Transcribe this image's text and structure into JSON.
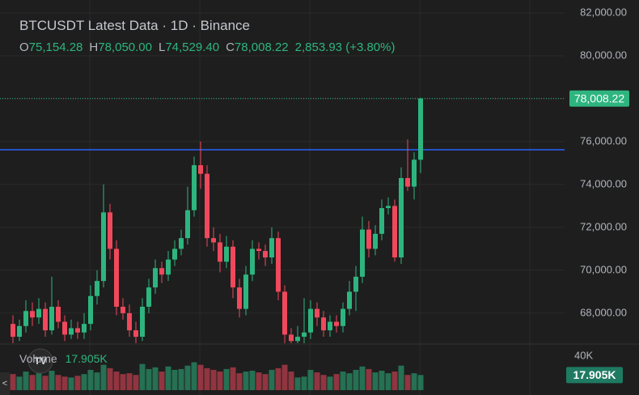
{
  "chart_data": {
    "type": "candlestick",
    "title": "BTCUSDT Latest Data · 1D · Binance",
    "legend": [
      {
        "label": "O",
        "value": "75,154.28"
      },
      {
        "label": "H",
        "value": "78,050.00"
      },
      {
        "label": "L",
        "value": "74,529.40"
      },
      {
        "label": "C",
        "value": "78,008.22"
      }
    ],
    "change": "2,853.93 (+3.80%)",
    "up_color": "#2eb57f",
    "down_color": "#f0485c",
    "level_line": {
      "value": 75620,
      "color": "#2962ff"
    },
    "open": [
      67500,
      66900,
      67400,
      68100,
      67800,
      68200,
      67200,
      68300,
      67600,
      67000,
      67300,
      67100,
      67500,
      68800,
      69500,
      72700,
      71000,
      68300,
      68000,
      67200,
      66900,
      68300,
      69200,
      70100,
      69800,
      70500,
      71000,
      71500,
      72800,
      74900,
      74500,
      71500,
      71300,
      70400,
      71100,
      69200,
      68200,
      69800,
      71000,
      70900,
      70600,
      71500,
      69000,
      67000,
      66700,
      66900,
      67100,
      68200,
      67800,
      67200,
      67600,
      67400,
      68200,
      69000,
      69700,
      71900,
      71000,
      71700,
      72900,
      73000,
      70600,
      74300,
      73900,
      75154.28
    ],
    "high": [
      67900,
      67700,
      68600,
      68500,
      68700,
      68500,
      69700,
      68600,
      67900,
      67700,
      67600,
      68000,
      69300,
      70000,
      74000,
      73100,
      71400,
      68700,
      68400,
      67600,
      68700,
      69600,
      70500,
      70400,
      70900,
      71400,
      71900,
      73900,
      75300,
      76000,
      74900,
      72000,
      71700,
      71600,
      71400,
      69600,
      70200,
      71400,
      71300,
      71200,
      72000,
      71800,
      69300,
      67300,
      67400,
      68700,
      68600,
      68500,
      68100,
      67900,
      67900,
      68500,
      69500,
      70200,
      72500,
      72300,
      72100,
      73300,
      73400,
      73300,
      74800,
      76100,
      75500,
      78050
    ],
    "low": [
      66600,
      66700,
      67100,
      67400,
      67500,
      66900,
      67000,
      67300,
      66700,
      66800,
      66800,
      66800,
      67200,
      68400,
      69200,
      70500,
      67900,
      67700,
      66900,
      66600,
      66700,
      68000,
      68900,
      69400,
      69500,
      70200,
      70700,
      71200,
      72500,
      73800,
      71100,
      70900,
      69900,
      70100,
      68700,
      67800,
      67900,
      69500,
      70500,
      70200,
      70300,
      68600,
      66600,
      66400,
      66500,
      66600,
      66800,
      67400,
      66900,
      66900,
      67100,
      67100,
      67900,
      68100,
      69400,
      70600,
      70700,
      71400,
      72600,
      70400,
      70300,
      73700,
      73300,
      74529.4
    ],
    "close": [
      66900,
      67400,
      68100,
      67800,
      68200,
      67200,
      68300,
      67600,
      67000,
      67300,
      67100,
      67500,
      68800,
      69500,
      72700,
      71000,
      68300,
      68000,
      67200,
      66900,
      68300,
      69200,
      70100,
      69800,
      70500,
      71000,
      71500,
      72800,
      74900,
      74500,
      71500,
      71300,
      70400,
      71100,
      69200,
      68200,
      69800,
      71000,
      70900,
      70600,
      71500,
      69000,
      67000,
      66700,
      66900,
      67100,
      68200,
      67800,
      67200,
      67600,
      67400,
      68200,
      69000,
      69700,
      71900,
      71000,
      71700,
      72900,
      73000,
      70600,
      74300,
      73900,
      75154.28,
      78008.22
    ],
    "last_price_label": "78,008.22",
    "ylim": [
      66600,
      82300
    ],
    "yticks": [
      {
        "value": 68000,
        "label": "68,000.00"
      },
      {
        "value": 70000,
        "label": "70,000.00"
      },
      {
        "value": 72000,
        "label": "72,000.00"
      },
      {
        "value": 74000,
        "label": "74,000.00"
      },
      {
        "value": 76000,
        "label": "76,000.00"
      },
      {
        "value": 78000,
        "label": "78,000.00"
      },
      {
        "value": 80000,
        "label": "80,000.00"
      },
      {
        "value": 82000,
        "label": "82,000.00"
      }
    ],
    "volume_name": "Volume",
    "volume_value_label": "17.905K",
    "volume": [
      19000,
      16000,
      22000,
      18000,
      20000,
      17000,
      23000,
      18000,
      16000,
      15000,
      17000,
      19000,
      24000,
      21000,
      30000,
      26000,
      22000,
      19000,
      20000,
      18000,
      31000,
      25000,
      27000,
      22000,
      28000,
      24000,
      25000,
      29000,
      33000,
      30000,
      26000,
      24000,
      22000,
      25000,
      27000,
      20000,
      22000,
      23000,
      21000,
      19000,
      24000,
      26000,
      30000,
      22000,
      15000,
      16000,
      24000,
      21000,
      18000,
      16000,
      19000,
      22000,
      20000,
      24000,
      28000,
      25000,
      21000,
      23000,
      20000,
      22000,
      29000,
      18000,
      20000,
      17905
    ],
    "volume_ylim": [
      0,
      46000
    ],
    "volume_yticks": [
      {
        "value": 40000,
        "label": "40K"
      }
    ],
    "grid": true
  }
}
